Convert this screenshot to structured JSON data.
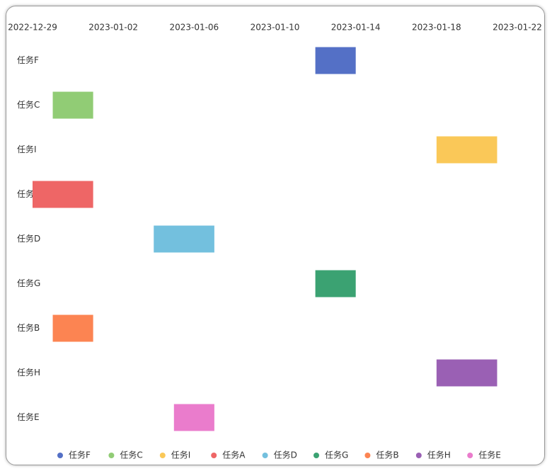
{
  "chart_data": {
    "type": "gantt",
    "xlim": [
      "2022-12-29",
      "2023-01-22"
    ],
    "xticks": [
      "2022-12-29",
      "2023-01-02",
      "2023-01-06",
      "2023-01-10",
      "2023-01-14",
      "2023-01-18",
      "2023-01-22"
    ],
    "tasks": [
      {
        "name": "任务F",
        "color": "#5470c6",
        "start": "2023-01-12",
        "end": "2023-01-14"
      },
      {
        "name": "任务C",
        "color": "#91cc75",
        "start": "2022-12-30",
        "end": "2023-01-01"
      },
      {
        "name": "任务I",
        "color": "#fac858",
        "start": "2023-01-18",
        "end": "2023-01-21"
      },
      {
        "name": "任务A",
        "color": "#ee6666",
        "start": "2022-12-29",
        "end": "2023-01-01"
      },
      {
        "name": "任务D",
        "color": "#73c0de",
        "start": "2023-01-04",
        "end": "2023-01-07"
      },
      {
        "name": "任务G",
        "color": "#3ba272",
        "start": "2023-01-12",
        "end": "2023-01-14"
      },
      {
        "name": "任务B",
        "color": "#fc8452",
        "start": "2022-12-30",
        "end": "2023-01-01"
      },
      {
        "name": "任务H",
        "color": "#9a60b4",
        "start": "2023-01-18",
        "end": "2023-01-21"
      },
      {
        "name": "任务E",
        "color": "#ea7ccc",
        "start": "2023-01-05",
        "end": "2023-01-07"
      }
    ]
  }
}
